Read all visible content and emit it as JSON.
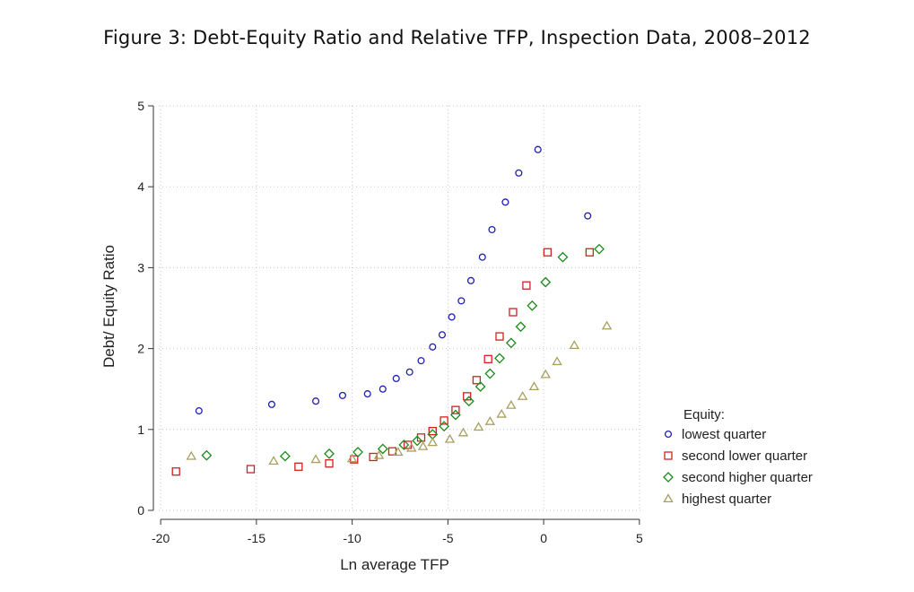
{
  "figure_title": "Figure 3: Debt-Equity Ratio and Relative TFP, Inspection Data, 2008–2012",
  "colors": {
    "lowest": "#1f1fb4",
    "second_lower": "#d22020",
    "second_higher": "#1a8a1a",
    "highest": "#a8a060",
    "axis": "#333333",
    "grid": "#c8c8c8"
  },
  "chart_data": {
    "type": "scatter",
    "title": "",
    "xlabel": "Ln average TFP",
    "ylabel": "Debt/ Equity Ratio",
    "xlim": [
      -20.1,
      5.1
    ],
    "ylim": [
      0,
      5
    ],
    "xticks": [
      -20,
      -15,
      -10,
      -5,
      0,
      5
    ],
    "yticks": [
      0,
      1,
      2,
      3,
      4,
      5
    ],
    "xtick_labels": [
      "-20",
      "-15",
      "-10",
      "-5",
      "0",
      "5"
    ],
    "ytick_labels": [
      "0",
      "1",
      "2",
      "3",
      "4",
      "5"
    ],
    "grid": true,
    "legend": {
      "title": "Equity:",
      "position": "right"
    },
    "series": [
      {
        "name": "lowest quarter",
        "marker": "circle",
        "color": "#1f1fb4",
        "points": [
          [
            -18.0,
            1.23
          ],
          [
            -14.2,
            1.31
          ],
          [
            -11.9,
            1.35
          ],
          [
            -10.5,
            1.42
          ],
          [
            -9.2,
            1.44
          ],
          [
            -8.4,
            1.5
          ],
          [
            -7.7,
            1.63
          ],
          [
            -7.0,
            1.71
          ],
          [
            -6.4,
            1.85
          ],
          [
            -5.8,
            2.02
          ],
          [
            -5.3,
            2.17
          ],
          [
            -4.8,
            2.39
          ],
          [
            -4.3,
            2.59
          ],
          [
            -3.8,
            2.84
          ],
          [
            -3.2,
            3.13
          ],
          [
            -2.7,
            3.47
          ],
          [
            -2.0,
            3.81
          ],
          [
            -1.3,
            4.17
          ],
          [
            -0.3,
            4.46
          ],
          [
            2.3,
            3.64
          ]
        ]
      },
      {
        "name": "second lower quarter",
        "marker": "square",
        "color": "#d22020",
        "points": [
          [
            -19.2,
            0.48
          ],
          [
            -15.3,
            0.51
          ],
          [
            -12.8,
            0.54
          ],
          [
            -11.2,
            0.58
          ],
          [
            -9.9,
            0.63
          ],
          [
            -8.9,
            0.66
          ],
          [
            -7.9,
            0.73
          ],
          [
            -7.1,
            0.81
          ],
          [
            -6.4,
            0.9
          ],
          [
            -5.8,
            0.98
          ],
          [
            -5.2,
            1.11
          ],
          [
            -4.6,
            1.24
          ],
          [
            -4.0,
            1.41
          ],
          [
            -3.5,
            1.61
          ],
          [
            -2.9,
            1.87
          ],
          [
            -2.3,
            2.15
          ],
          [
            -1.6,
            2.45
          ],
          [
            -0.9,
            2.78
          ],
          [
            0.2,
            3.19
          ],
          [
            2.4,
            3.19
          ]
        ]
      },
      {
        "name": "second higher quarter",
        "marker": "diamond",
        "color": "#1a8a1a",
        "points": [
          [
            -17.6,
            0.68
          ],
          [
            -13.5,
            0.67
          ],
          [
            -11.2,
            0.7
          ],
          [
            -9.7,
            0.72
          ],
          [
            -8.4,
            0.76
          ],
          [
            -7.3,
            0.81
          ],
          [
            -6.6,
            0.86
          ],
          [
            -5.8,
            0.94
          ],
          [
            -5.2,
            1.04
          ],
          [
            -4.6,
            1.18
          ],
          [
            -3.9,
            1.35
          ],
          [
            -3.3,
            1.53
          ],
          [
            -2.8,
            1.69
          ],
          [
            -2.3,
            1.88
          ],
          [
            -1.7,
            2.07
          ],
          [
            -1.2,
            2.27
          ],
          [
            -0.6,
            2.53
          ],
          [
            0.1,
            2.82
          ],
          [
            1.0,
            3.13
          ],
          [
            2.9,
            3.23
          ]
        ]
      },
      {
        "name": "highest quarter",
        "marker": "triangle",
        "color": "#a8a060",
        "points": [
          [
            -18.4,
            0.67
          ],
          [
            -14.1,
            0.61
          ],
          [
            -11.9,
            0.63
          ],
          [
            -10.0,
            0.64
          ],
          [
            -8.6,
            0.68
          ],
          [
            -7.6,
            0.72
          ],
          [
            -6.9,
            0.77
          ],
          [
            -6.3,
            0.79
          ],
          [
            -5.8,
            0.84
          ],
          [
            -4.9,
            0.88
          ],
          [
            -4.2,
            0.96
          ],
          [
            -3.4,
            1.03
          ],
          [
            -2.8,
            1.1
          ],
          [
            -2.2,
            1.19
          ],
          [
            -1.7,
            1.3
          ],
          [
            -1.1,
            1.41
          ],
          [
            -0.5,
            1.53
          ],
          [
            0.1,
            1.68
          ],
          [
            0.7,
            1.84
          ],
          [
            1.6,
            2.04
          ],
          [
            3.3,
            2.28
          ]
        ]
      }
    ]
  }
}
